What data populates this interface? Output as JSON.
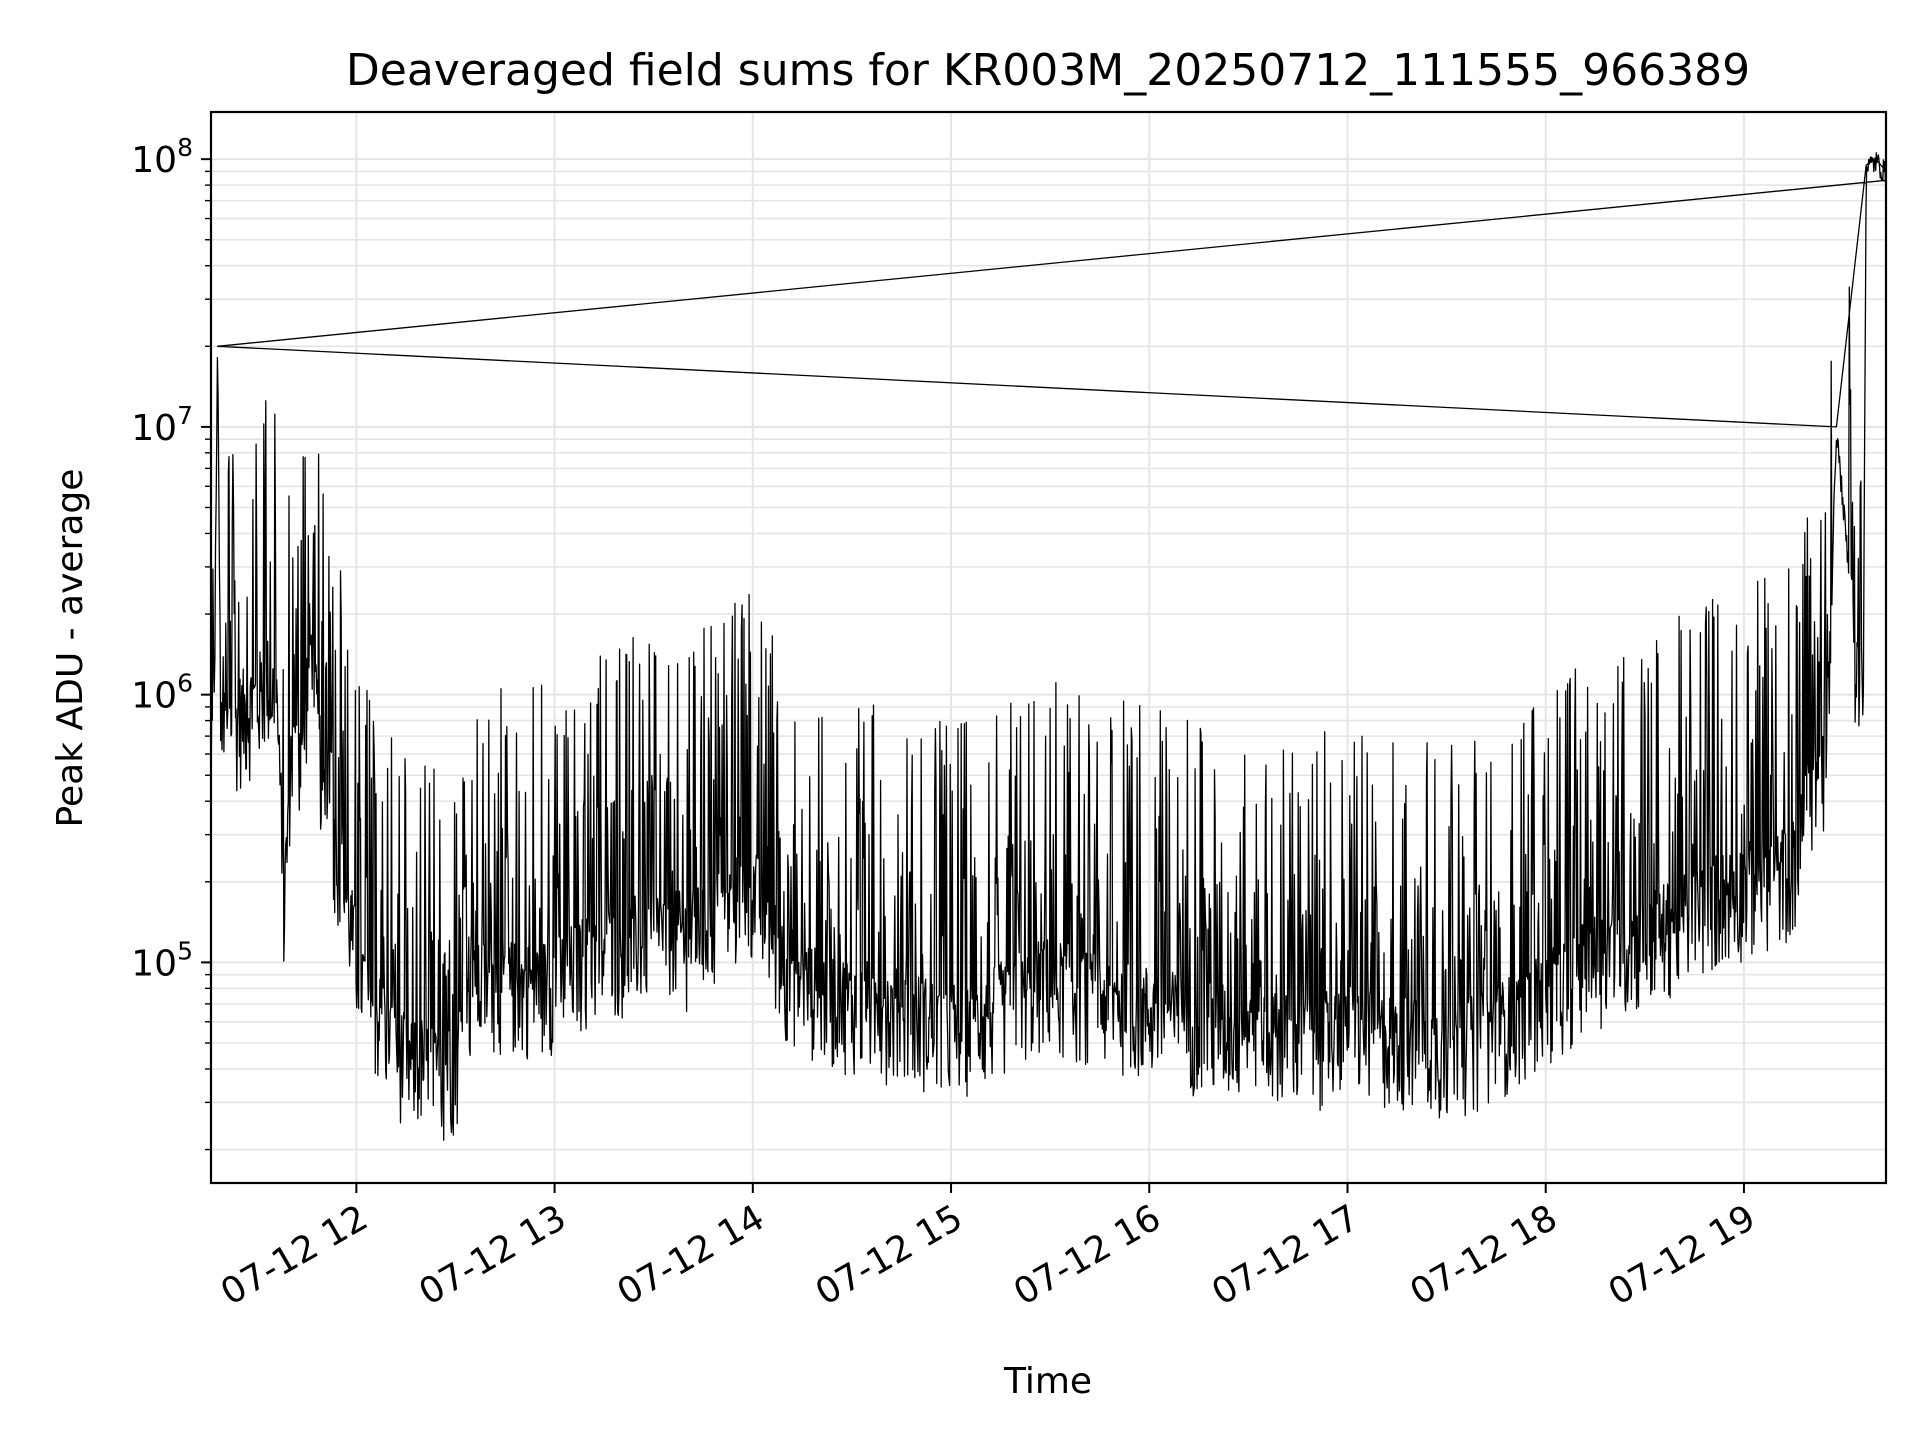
{
  "chart_data": {
    "type": "line",
    "title": "Deaveraged field sums for KR003M_20250712_111555_966389",
    "xlabel": "Time",
    "ylabel": "Peak ADU - average",
    "yscale": "log",
    "ylim": [
      15000,
      150000000
    ],
    "xlim": [
      "2025-07-12 11:16",
      "2025-07-12 19:43"
    ],
    "x_ticks": [
      {
        "value": "2025-07-12 12:00",
        "label": "07-12 12"
      },
      {
        "value": "2025-07-12 13:00",
        "label": "07-12 13"
      },
      {
        "value": "2025-07-12 14:00",
        "label": "07-12 14"
      },
      {
        "value": "2025-07-12 15:00",
        "label": "07-12 15"
      },
      {
        "value": "2025-07-12 16:00",
        "label": "07-12 16"
      },
      {
        "value": "2025-07-12 17:00",
        "label": "07-12 17"
      },
      {
        "value": "2025-07-12 18:00",
        "label": "07-12 18"
      },
      {
        "value": "2025-07-12 19:00",
        "label": "07-12 19"
      }
    ],
    "y_ticks": [
      {
        "value": 100000,
        "base": "10",
        "exp": "5"
      },
      {
        "value": 1000000,
        "base": "10",
        "exp": "6"
      },
      {
        "value": 10000000,
        "base": "10",
        "exp": "7"
      },
      {
        "value": 100000000,
        "base": "10",
        "exp": "8"
      }
    ],
    "grid": true,
    "line_color": "#000000",
    "grid_color": "#e5e5e5",
    "series": [
      {
        "points": [
          [
            "2025-07-12 11:16",
            500000
          ],
          [
            "2025-07-12 11:17",
            1300000
          ],
          [
            "2025-07-12 11:18",
            20000000
          ],
          [
            "2025-07-12 11:19",
            700000
          ],
          [
            "2025-07-12 11:22",
            800000
          ],
          [
            "2025-07-12 11:26",
            900000
          ],
          [
            "2025-07-12 11:30",
            1000000
          ],
          [
            "2025-07-12 11:33",
            1200000
          ],
          [
            "2025-07-12 11:36",
            1000000
          ],
          [
            "2025-07-12 11:38",
            150000
          ],
          [
            "2025-07-12 11:40",
            600000
          ],
          [
            "2025-07-12 11:44",
            700000
          ],
          [
            "2025-07-12 11:46",
            1700000
          ],
          [
            "2025-07-12 11:50",
            450000
          ],
          [
            "2025-07-12 11:55",
            250000
          ],
          [
            "2025-07-12 12:00",
            110000
          ],
          [
            "2025-07-12 12:05",
            70000
          ],
          [
            "2025-07-12 12:10",
            60000
          ],
          [
            "2025-07-12 12:15",
            45000
          ],
          [
            "2025-07-12 12:20",
            45000
          ],
          [
            "2025-07-12 12:25",
            40000
          ],
          [
            "2025-07-12 12:30",
            45000
          ],
          [
            "2025-07-12 12:35",
            80000
          ],
          [
            "2025-07-12 12:40",
            90000
          ],
          [
            "2025-07-12 12:50",
            85000
          ],
          [
            "2025-07-12 13:00",
            90000
          ],
          [
            "2025-07-12 13:10",
            110000
          ],
          [
            "2025-07-12 13:20",
            120000
          ],
          [
            "2025-07-12 13:30",
            140000
          ],
          [
            "2025-07-12 13:40",
            130000
          ],
          [
            "2025-07-12 13:50",
            160000
          ],
          [
            "2025-07-12 14:00",
            200000
          ],
          [
            "2025-07-12 14:10",
            100000
          ],
          [
            "2025-07-12 14:20",
            80000
          ],
          [
            "2025-07-12 14:30",
            75000
          ],
          [
            "2025-07-12 14:40",
            70000
          ],
          [
            "2025-07-12 14:50",
            65000
          ],
          [
            "2025-07-12 15:00",
            60000
          ],
          [
            "2025-07-12 15:10",
            65000
          ],
          [
            "2025-07-12 15:20",
            80000
          ],
          [
            "2025-07-12 15:30",
            90000
          ],
          [
            "2025-07-12 15:40",
            80000
          ],
          [
            "2025-07-12 15:50",
            75000
          ],
          [
            "2025-07-12 16:00",
            70000
          ],
          [
            "2025-07-12 16:10",
            65000
          ],
          [
            "2025-07-12 16:20",
            60000
          ],
          [
            "2025-07-12 16:30",
            60000
          ],
          [
            "2025-07-12 16:40",
            55000
          ],
          [
            "2025-07-12 16:50",
            55000
          ],
          [
            "2025-07-12 17:00",
            60000
          ],
          [
            "2025-07-12 17:10",
            55000
          ],
          [
            "2025-07-12 17:20",
            55000
          ],
          [
            "2025-07-12 17:30",
            50000
          ],
          [
            "2025-07-12 17:40",
            55000
          ],
          [
            "2025-07-12 17:50",
            65000
          ],
          [
            "2025-07-12 18:00",
            80000
          ],
          [
            "2025-07-12 18:10",
            100000
          ],
          [
            "2025-07-12 18:20",
            120000
          ],
          [
            "2025-07-12 18:30",
            130000
          ],
          [
            "2025-07-12 18:40",
            150000
          ],
          [
            "2025-07-12 18:50",
            180000
          ],
          [
            "2025-07-12 19:00",
            200000
          ],
          [
            "2025-07-12 19:10",
            220000
          ],
          [
            "2025-07-12 19:16",
            250000
          ],
          [
            "2025-07-12 19:20",
            500000
          ],
          [
            "2025-07-12 19:25",
            600000
          ],
          [
            "2025-07-12 19:28",
            10000000
          ],
          [
            "2025-07-12 19:33",
            2000000
          ],
          [
            "2025-07-12 19:36",
            600000
          ],
          [
            "2025-07-12 19:37",
            95000000
          ],
          [
            "2025-07-12 19:40",
            100000000
          ],
          [
            "2025-07-12 19:43",
            90000000
          ]
        ]
      }
    ]
  }
}
